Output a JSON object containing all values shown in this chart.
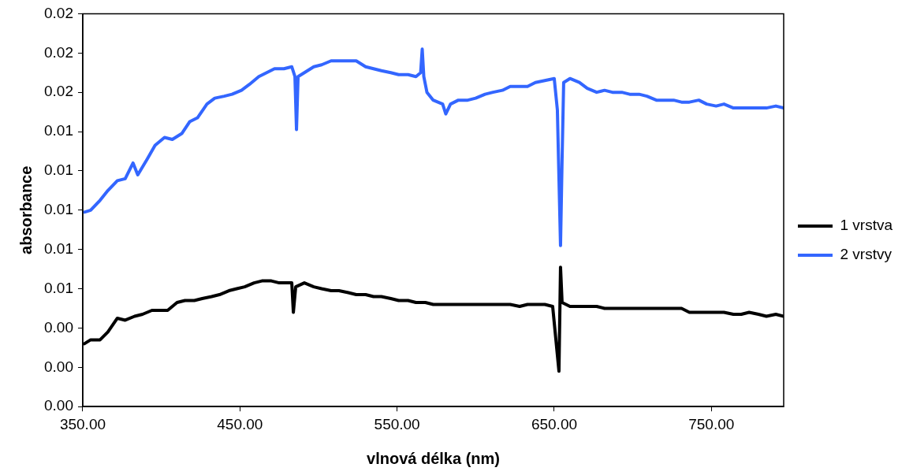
{
  "chart_data": {
    "type": "line",
    "xlabel": "vlnová délka (nm)",
    "ylabel": "absorbance",
    "xlim": [
      350,
      796
    ],
    "xticks": [
      {
        "value": 350,
        "label": "350.00"
      },
      {
        "value": 450,
        "label": "450.00"
      },
      {
        "value": 550,
        "label": "550.00"
      },
      {
        "value": 650,
        "label": "650.00"
      },
      {
        "value": 750,
        "label": "750.00"
      }
    ],
    "ylim": [
      0,
      0.02
    ],
    "yticks": [
      {
        "value": 0,
        "label": "0.00"
      },
      {
        "value": 0.002,
        "label": "0.00"
      },
      {
        "value": 0.004,
        "label": "0.00"
      },
      {
        "value": 0.006,
        "label": "0.01"
      },
      {
        "value": 0.008,
        "label": "0.01"
      },
      {
        "value": 0.01,
        "label": "0.01"
      },
      {
        "value": 0.012,
        "label": "0.01"
      },
      {
        "value": 0.014,
        "label": "0.01"
      },
      {
        "value": 0.016,
        "label": "0.02"
      },
      {
        "value": 0.018,
        "label": "0.02"
      },
      {
        "value": 0.02,
        "label": "0.02"
      }
    ],
    "grid": false,
    "legend": "right",
    "marker": "none",
    "line_style": "solid",
    "series": [
      {
        "name": "1 vrstva",
        "color": "#000000",
        "x": [
          351,
          355,
          361,
          366,
          372,
          377,
          383,
          388,
          394,
          399,
          404,
          410,
          415,
          421,
          426,
          432,
          437,
          443,
          448,
          453,
          459,
          464,
          470,
          475,
          481,
          483,
          484,
          485.5,
          491,
          497,
          502,
          508,
          513,
          519,
          524,
          530,
          535,
          540,
          546,
          551,
          557,
          562,
          568,
          573,
          579,
          584,
          589,
          595,
          600,
          606,
          611,
          617,
          622,
          628,
          633,
          638,
          644,
          649,
          653,
          654,
          655,
          660,
          666,
          671,
          677,
          682,
          687,
          693,
          698,
          704,
          709,
          715,
          720,
          726,
          731,
          736,
          742,
          747,
          753,
          758,
          764,
          769,
          774,
          780,
          785,
          791,
          796
        ],
        "values": [
          0.0032,
          0.0034,
          0.0034,
          0.0038,
          0.0045,
          0.0044,
          0.0046,
          0.0047,
          0.0049,
          0.0049,
          0.0049,
          0.0053,
          0.0054,
          0.0054,
          0.0055,
          0.0056,
          0.0057,
          0.0059,
          0.006,
          0.0061,
          0.0063,
          0.0064,
          0.0064,
          0.0063,
          0.0063,
          0.0063,
          0.0048,
          0.0061,
          0.0063,
          0.0061,
          0.006,
          0.0059,
          0.0059,
          0.0058,
          0.0057,
          0.0057,
          0.0056,
          0.0056,
          0.0055,
          0.0054,
          0.0054,
          0.0053,
          0.0053,
          0.0052,
          0.0052,
          0.0052,
          0.0052,
          0.0052,
          0.0052,
          0.0052,
          0.0052,
          0.0052,
          0.0052,
          0.0051,
          0.0052,
          0.0052,
          0.0052,
          0.0051,
          0.0018,
          0.0071,
          0.0053,
          0.0051,
          0.0051,
          0.0051,
          0.0051,
          0.005,
          0.005,
          0.005,
          0.005,
          0.005,
          0.005,
          0.005,
          0.005,
          0.005,
          0.005,
          0.0048,
          0.0048,
          0.0048,
          0.0048,
          0.0048,
          0.0047,
          0.0047,
          0.0048,
          0.0047,
          0.0046,
          0.0047,
          0.0046
        ]
      },
      {
        "name": "2 vrstvy",
        "color": "#3366ff",
        "x": [
          351,
          355,
          361,
          366,
          372,
          377,
          382,
          385,
          391,
          396,
          402,
          407,
          413,
          418,
          423,
          429,
          434,
          440,
          445,
          451,
          456,
          462,
          467,
          472,
          478,
          483,
          485,
          486,
          487,
          491,
          497,
          502,
          508,
          513,
          519,
          524,
          530,
          535,
          540,
          546,
          551,
          557,
          562,
          565,
          566,
          567,
          568,
          569,
          573,
          579,
          581,
          584,
          589,
          595,
          600,
          606,
          611,
          617,
          622,
          628,
          633,
          638,
          644,
          650,
          652,
          654,
          655,
          656,
          660,
          666,
          671,
          677,
          682,
          687,
          693,
          698,
          704,
          709,
          715,
          720,
          726,
          731,
          736,
          742,
          747,
          753,
          758,
          764,
          769,
          774,
          780,
          785,
          791,
          796
        ],
        "values": [
          0.0099,
          0.01,
          0.0105,
          0.011,
          0.0115,
          0.0116,
          0.0124,
          0.0118,
          0.0126,
          0.0133,
          0.0137,
          0.0136,
          0.0139,
          0.0145,
          0.0147,
          0.0154,
          0.0157,
          0.0158,
          0.0159,
          0.0161,
          0.0164,
          0.0168,
          0.017,
          0.0172,
          0.0172,
          0.0173,
          0.0168,
          0.0141,
          0.0168,
          0.017,
          0.0173,
          0.0174,
          0.0176,
          0.0176,
          0.0176,
          0.0176,
          0.0173,
          0.0172,
          0.0171,
          0.017,
          0.0169,
          0.0169,
          0.0168,
          0.017,
          0.0182,
          0.0168,
          0.0164,
          0.016,
          0.0156,
          0.0154,
          0.0149,
          0.0154,
          0.0156,
          0.0156,
          0.0157,
          0.0159,
          0.016,
          0.0161,
          0.0163,
          0.0163,
          0.0163,
          0.0165,
          0.0166,
          0.0167,
          0.0151,
          0.0082,
          0.0126,
          0.0165,
          0.0167,
          0.0165,
          0.0162,
          0.016,
          0.0161,
          0.016,
          0.016,
          0.0159,
          0.0159,
          0.0158,
          0.0156,
          0.0156,
          0.0156,
          0.0155,
          0.0155,
          0.0156,
          0.0154,
          0.0153,
          0.0154,
          0.0152,
          0.0152,
          0.0152,
          0.0152,
          0.0152,
          0.0153,
          0.0152
        ]
      }
    ]
  }
}
